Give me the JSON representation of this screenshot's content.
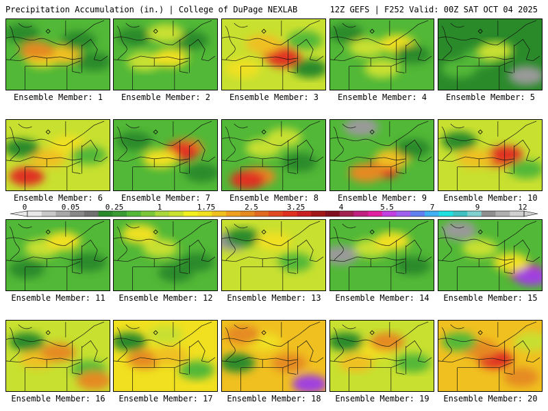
{
  "header": {
    "left": "Precipitation Accumulation (in.) | College of DuPage NEXLAB",
    "right": "12Z GEFS | F252 Valid: 00Z SAT OCT 04 2025"
  },
  "panels": [
    {
      "label": "Ensemble Member: 1",
      "base": "#52b837",
      "blobs": [
        [
          0.35,
          0.55,
          "#f0e020"
        ],
        [
          0.55,
          0.5,
          "#f0c020"
        ],
        [
          0.3,
          0.45,
          "#e58a20"
        ],
        [
          0.7,
          0.3,
          "#2a8a2a"
        ],
        [
          0.85,
          0.6,
          "#2a8a2a"
        ],
        [
          0.15,
          0.2,
          "#2a8a2a"
        ]
      ]
    },
    {
      "label": "Ensemble Member: 2",
      "base": "#52b837",
      "blobs": [
        [
          0.3,
          0.6,
          "#c8e030"
        ],
        [
          0.55,
          0.55,
          "#f0e020"
        ],
        [
          0.75,
          0.3,
          "#2a8a2a"
        ],
        [
          0.2,
          0.25,
          "#2a8a2a"
        ],
        [
          0.5,
          0.2,
          "#c8e030"
        ]
      ]
    },
    {
      "label": "Ensemble Member: 3",
      "base": "#c8e030",
      "blobs": [
        [
          0.55,
          0.5,
          "#e58a20"
        ],
        [
          0.6,
          0.55,
          "#e03020"
        ],
        [
          0.4,
          0.35,
          "#f0c020"
        ],
        [
          0.2,
          0.7,
          "#f0e020"
        ],
        [
          0.85,
          0.7,
          "#2a8a2a"
        ],
        [
          0.8,
          0.3,
          "#52b837"
        ]
      ]
    },
    {
      "label": "Ensemble Member: 4",
      "base": "#52b837",
      "blobs": [
        [
          0.35,
          0.4,
          "#c8e030"
        ],
        [
          0.65,
          0.35,
          "#f0e020"
        ],
        [
          0.8,
          0.5,
          "#2a8a2a"
        ],
        [
          0.15,
          0.2,
          "#2a8a2a"
        ],
        [
          0.5,
          0.7,
          "#c8e030"
        ]
      ]
    },
    {
      "label": "Ensemble Member: 5",
      "base": "#2a8a2a",
      "blobs": [
        [
          0.4,
          0.55,
          "#52b837"
        ],
        [
          0.55,
          0.45,
          "#c8e030"
        ],
        [
          0.85,
          0.8,
          "#9a9a9a"
        ],
        [
          0.2,
          0.7,
          "#52b837"
        ]
      ]
    },
    {
      "label": "Ensemble Member: 6",
      "base": "#c8e030",
      "blobs": [
        [
          0.2,
          0.8,
          "#e03020"
        ],
        [
          0.4,
          0.55,
          "#f0c020"
        ],
        [
          0.6,
          0.35,
          "#f0e020"
        ],
        [
          0.8,
          0.5,
          "#52b837"
        ],
        [
          0.15,
          0.4,
          "#2a8a2a"
        ]
      ]
    },
    {
      "label": "Ensemble Member: 7",
      "base": "#52b837",
      "blobs": [
        [
          0.7,
          0.4,
          "#e58a20"
        ],
        [
          0.65,
          0.45,
          "#e03020"
        ],
        [
          0.45,
          0.55,
          "#f0e020"
        ],
        [
          0.2,
          0.3,
          "#2a8a2a"
        ],
        [
          0.85,
          0.75,
          "#2a8a2a"
        ]
      ]
    },
    {
      "label": "Ensemble Member: 8",
      "base": "#52b837",
      "blobs": [
        [
          0.4,
          0.4,
          "#c8e030"
        ],
        [
          0.35,
          0.8,
          "#e58a20"
        ],
        [
          0.25,
          0.85,
          "#e03020"
        ],
        [
          0.75,
          0.6,
          "#2a8a2a"
        ],
        [
          0.6,
          0.25,
          "#c8e030"
        ]
      ]
    },
    {
      "label": "Ensemble Member: 9",
      "base": "#52b837",
      "blobs": [
        [
          0.5,
          0.7,
          "#e03020"
        ],
        [
          0.35,
          0.75,
          "#e58a20"
        ],
        [
          0.6,
          0.55,
          "#f0c020"
        ],
        [
          0.3,
          0.1,
          "#9a9a9a"
        ],
        [
          0.8,
          0.4,
          "#2a8a2a"
        ]
      ]
    },
    {
      "label": "Ensemble Member: 10",
      "base": "#c8e030",
      "blobs": [
        [
          0.55,
          0.55,
          "#e58a20"
        ],
        [
          0.65,
          0.5,
          "#e03020"
        ],
        [
          0.35,
          0.55,
          "#f0c020"
        ],
        [
          0.2,
          0.3,
          "#2a8a2a"
        ],
        [
          0.85,
          0.7,
          "#52b837"
        ]
      ]
    },
    {
      "label": "Ensemble Member: 11",
      "base": "#52b837",
      "blobs": [
        [
          0.35,
          0.4,
          "#c8e030"
        ],
        [
          0.55,
          0.3,
          "#f0e020"
        ],
        [
          0.2,
          0.7,
          "#2a8a2a"
        ],
        [
          0.8,
          0.6,
          "#2a8a2a"
        ]
      ]
    },
    {
      "label": "Ensemble Member: 12",
      "base": "#52b837",
      "blobs": [
        [
          0.25,
          0.2,
          "#f0e020"
        ],
        [
          0.45,
          0.4,
          "#c8e030"
        ],
        [
          0.8,
          0.6,
          "#2a8a2a"
        ],
        [
          0.6,
          0.75,
          "#2a8a2a"
        ]
      ]
    },
    {
      "label": "Ensemble Member: 13",
      "base": "#c8e030",
      "blobs": [
        [
          0.1,
          0.3,
          "#9a9a9a"
        ],
        [
          0.2,
          0.25,
          "#2a8a2a"
        ],
        [
          0.5,
          0.3,
          "#f0e020"
        ],
        [
          0.7,
          0.6,
          "#52b837"
        ],
        [
          0.4,
          0.7,
          "#c8e030"
        ]
      ]
    },
    {
      "label": "Ensemble Member: 14",
      "base": "#52b837",
      "blobs": [
        [
          0.1,
          0.5,
          "#9a9a9a"
        ],
        [
          0.4,
          0.4,
          "#c8e030"
        ],
        [
          0.6,
          0.3,
          "#f0e020"
        ],
        [
          0.8,
          0.65,
          "#2a8a2a"
        ]
      ]
    },
    {
      "label": "Ensemble Member: 15",
      "base": "#52b837",
      "blobs": [
        [
          0.2,
          0.15,
          "#9a9a9a"
        ],
        [
          0.4,
          0.4,
          "#c8e030"
        ],
        [
          0.85,
          0.75,
          "#e03020"
        ],
        [
          0.9,
          0.8,
          "#a040e0"
        ],
        [
          0.7,
          0.6,
          "#f0e020"
        ]
      ]
    },
    {
      "label": "Ensemble Member: 16",
      "base": "#c8e030",
      "blobs": [
        [
          0.3,
          0.55,
          "#f0c020"
        ],
        [
          0.5,
          0.45,
          "#e58a20"
        ],
        [
          0.2,
          0.3,
          "#2a8a2a"
        ],
        [
          0.8,
          0.7,
          "#52b837"
        ],
        [
          0.85,
          0.85,
          "#e58a20"
        ]
      ]
    },
    {
      "label": "Ensemble Member: 17",
      "base": "#f0e020",
      "blobs": [
        [
          0.3,
          0.55,
          "#e58a20"
        ],
        [
          0.55,
          0.5,
          "#f0c020"
        ],
        [
          0.5,
          0.2,
          "#c8e030"
        ],
        [
          0.8,
          0.7,
          "#52b837"
        ],
        [
          0.15,
          0.3,
          "#2a8a2a"
        ]
      ]
    },
    {
      "label": "Ensemble Member: 18",
      "base": "#f0c020",
      "blobs": [
        [
          0.4,
          0.3,
          "#f0e020"
        ],
        [
          0.65,
          0.6,
          "#e58a20"
        ],
        [
          0.85,
          0.9,
          "#a040e0"
        ],
        [
          0.2,
          0.2,
          "#e58a20"
        ],
        [
          0.15,
          0.6,
          "#2a8a2a"
        ]
      ]
    },
    {
      "label": "Ensemble Member: 19",
      "base": "#c8e030",
      "blobs": [
        [
          0.45,
          0.4,
          "#f0e020"
        ],
        [
          0.55,
          0.3,
          "#e58a20"
        ],
        [
          0.25,
          0.6,
          "#f0c020"
        ],
        [
          0.8,
          0.6,
          "#52b837"
        ],
        [
          0.15,
          0.3,
          "#2a8a2a"
        ]
      ]
    },
    {
      "label": "Ensemble Member: 20",
      "base": "#f0c020",
      "blobs": [
        [
          0.55,
          0.55,
          "#e03020"
        ],
        [
          0.4,
          0.4,
          "#e58a20"
        ],
        [
          0.8,
          0.8,
          "#e58a20"
        ],
        [
          0.2,
          0.3,
          "#52b837"
        ],
        [
          0.9,
          0.3,
          "#c8e030"
        ]
      ]
    }
  ],
  "colorbar": {
    "labels": [
      "0",
      "0.05",
      "0.25",
      "1",
      "1.75",
      "2.5",
      "3.25",
      "4",
      "5.5",
      "7",
      "9",
      "12"
    ],
    "colors": [
      "#e8e8e8",
      "#c8c8c8",
      "#a8a8a8",
      "#888888",
      "#707070",
      "#2a8a2a",
      "#3a9a33",
      "#52b837",
      "#7cc83a",
      "#a8d83a",
      "#c8e030",
      "#f0f020",
      "#f0e020",
      "#f0c020",
      "#f0a020",
      "#e58a20",
      "#e06a20",
      "#e04a20",
      "#e03020",
      "#c82020",
      "#a01818",
      "#801020",
      "#a02050",
      "#c02080",
      "#e020a0",
      "#c040e0",
      "#a060f0",
      "#6080f0",
      "#40b0f0",
      "#20e0e0",
      "#40c0c0",
      "#80d0d0",
      "#909090",
      "#b0b0b0",
      "#d0d0d0"
    ]
  }
}
